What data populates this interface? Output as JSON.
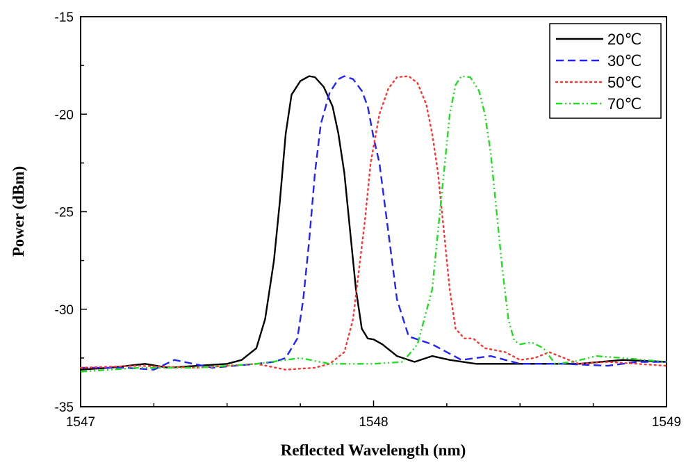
{
  "chart_data": {
    "type": "line",
    "title": "",
    "xlabel": "Reflected Wavelength (nm)",
    "ylabel": "Power (dBm)",
    "xlim": [
      1547,
      1549
    ],
    "ylim": [
      -35,
      -15
    ],
    "xticks": [
      1547,
      1548,
      1549
    ],
    "yticks": [
      -15,
      -20,
      -25,
      -30,
      -35
    ],
    "grid": false,
    "legend_position": "top-right",
    "series": [
      {
        "name": "20℃",
        "color": "#000000",
        "dash": "solid",
        "x": [
          1547.0,
          1547.1,
          1547.22,
          1547.3,
          1547.4,
          1547.5,
          1547.55,
          1547.6,
          1547.63,
          1547.66,
          1547.68,
          1547.7,
          1547.72,
          1547.75,
          1547.78,
          1547.8,
          1547.83,
          1547.86,
          1547.88,
          1547.9,
          1547.92,
          1547.94,
          1547.96,
          1547.98,
          1548.0,
          1548.03,
          1548.08,
          1548.14,
          1548.2,
          1548.26,
          1548.35,
          1548.5,
          1548.7,
          1548.85,
          1549.0
        ],
        "y": [
          -33.1,
          -33.0,
          -32.8,
          -33.0,
          -32.9,
          -32.8,
          -32.6,
          -32.0,
          -30.5,
          -27.5,
          -24.5,
          -21.0,
          -19.0,
          -18.3,
          -18.05,
          -18.1,
          -18.6,
          -19.6,
          -21.0,
          -23.0,
          -26.0,
          -29.0,
          -31.0,
          -31.5,
          -31.55,
          -31.8,
          -32.4,
          -32.7,
          -32.4,
          -32.6,
          -32.8,
          -32.8,
          -32.8,
          -32.6,
          -32.7
        ]
      },
      {
        "name": "30℃",
        "color": "#2222ff",
        "dash": "dashed",
        "x": [
          1547.0,
          1547.15,
          1547.25,
          1547.32,
          1547.45,
          1547.6,
          1547.66,
          1547.7,
          1547.74,
          1547.76,
          1547.78,
          1547.8,
          1547.82,
          1547.85,
          1547.88,
          1547.9,
          1547.93,
          1547.96,
          1547.98,
          1548.0,
          1548.02,
          1548.05,
          1548.08,
          1548.12,
          1548.2,
          1548.3,
          1548.4,
          1548.5,
          1548.65,
          1548.8,
          1548.9,
          1549.0
        ],
        "y": [
          -33.0,
          -33.0,
          -33.1,
          -32.6,
          -33.0,
          -32.8,
          -32.7,
          -32.5,
          -31.5,
          -29.5,
          -26.5,
          -23.0,
          -20.5,
          -18.9,
          -18.2,
          -18.05,
          -18.2,
          -18.8,
          -19.6,
          -21.2,
          -22.5,
          -26.0,
          -29.5,
          -31.4,
          -31.8,
          -32.6,
          -32.4,
          -32.8,
          -32.8,
          -32.9,
          -32.7,
          -32.7
        ]
      },
      {
        "name": "50℃",
        "color": "#ff3333",
        "dash": "dotted",
        "x": [
          1547.0,
          1547.2,
          1547.4,
          1547.6,
          1547.7,
          1547.8,
          1547.85,
          1547.9,
          1547.93,
          1547.95,
          1547.97,
          1547.99,
          1548.02,
          1548.05,
          1548.08,
          1548.12,
          1548.15,
          1548.18,
          1548.2,
          1548.22,
          1548.24,
          1548.26,
          1548.28,
          1548.31,
          1548.34,
          1548.38,
          1548.45,
          1548.5,
          1548.55,
          1548.6,
          1548.7,
          1548.8,
          1548.9,
          1549.0
        ],
        "y": [
          -33.0,
          -32.9,
          -33.0,
          -32.8,
          -33.1,
          -33.0,
          -32.8,
          -32.2,
          -30.5,
          -28.0,
          -25.5,
          -22.5,
          -20.0,
          -18.7,
          -18.1,
          -18.05,
          -18.4,
          -19.5,
          -21.0,
          -23.0,
          -26.0,
          -29.0,
          -31.0,
          -31.5,
          -31.5,
          -32.0,
          -32.2,
          -32.6,
          -32.5,
          -32.2,
          -32.8,
          -32.7,
          -32.8,
          -32.9
        ]
      },
      {
        "name": "70℃",
        "color": "#22dd22",
        "dash": "dashdot",
        "x": [
          1547.0,
          1547.2,
          1547.4,
          1547.6,
          1547.75,
          1547.85,
          1548.0,
          1548.1,
          1548.15,
          1548.2,
          1548.22,
          1548.24,
          1548.26,
          1548.28,
          1548.3,
          1548.33,
          1548.36,
          1548.38,
          1548.4,
          1548.42,
          1548.44,
          1548.46,
          1548.48,
          1548.5,
          1548.54,
          1548.58,
          1548.62,
          1548.68,
          1548.76,
          1548.85,
          1549.0
        ],
        "y": [
          -33.2,
          -33.0,
          -33.0,
          -32.8,
          -32.5,
          -32.8,
          -32.8,
          -32.7,
          -31.8,
          -29.0,
          -26.0,
          -23.0,
          -20.0,
          -18.5,
          -18.05,
          -18.1,
          -18.8,
          -20.0,
          -22.0,
          -25.0,
          -28.0,
          -30.5,
          -31.6,
          -31.8,
          -31.7,
          -32.0,
          -32.8,
          -32.7,
          -32.4,
          -32.5,
          -32.7
        ]
      }
    ]
  }
}
